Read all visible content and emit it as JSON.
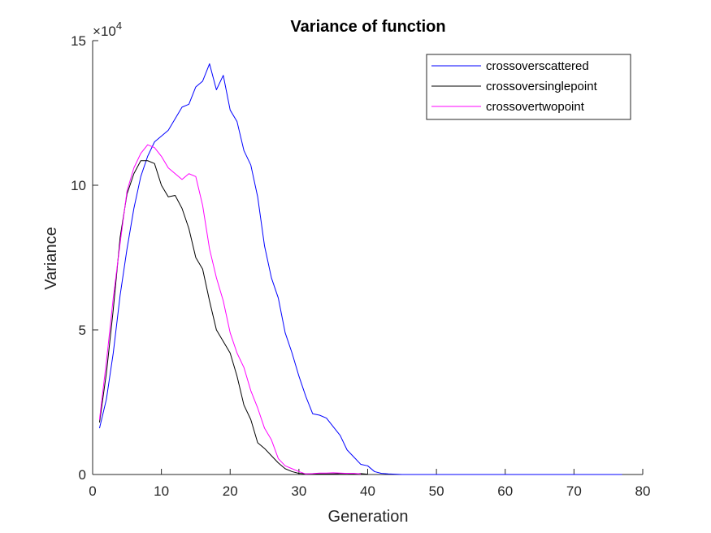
{
  "chart_data": {
    "type": "line",
    "title": "Variance of function",
    "xlabel": "Generation",
    "ylabel": "Variance",
    "xlim": [
      0,
      80
    ],
    "ylim": [
      0,
      15
    ],
    "y_exponent_base": "10",
    "y_exponent_power": "4",
    "xticks": [
      "0",
      "10",
      "20",
      "30",
      "40",
      "50",
      "60",
      "70",
      "80"
    ],
    "yticks": [
      "0",
      "5",
      "10",
      "15"
    ],
    "xtick_values": [
      0,
      10,
      20,
      30,
      40,
      50,
      60,
      70,
      80
    ],
    "ytick_values": [
      0,
      5,
      10,
      15
    ],
    "grid": false,
    "legend_position": "top-right",
    "series": [
      {
        "name": "crossoverscattered",
        "color": "#0000ff",
        "x": [
          1,
          2,
          3,
          4,
          5,
          6,
          7,
          8,
          9,
          10,
          11,
          12,
          13,
          14,
          15,
          16,
          17,
          18,
          19,
          20,
          21,
          22,
          23,
          24,
          25,
          26,
          27,
          28,
          29,
          30,
          31,
          32,
          33,
          34,
          35,
          36,
          37,
          38,
          39,
          40,
          41,
          42,
          43,
          44,
          45,
          50,
          55,
          60,
          65,
          70,
          75,
          77
        ],
        "y": [
          1.6,
          2.6,
          4.2,
          6.2,
          7.8,
          9.2,
          10.3,
          11.0,
          11.5,
          11.7,
          11.9,
          12.3,
          12.7,
          12.8,
          13.4,
          13.6,
          14.2,
          13.3,
          13.8,
          12.6,
          12.2,
          11.2,
          10.7,
          9.6,
          7.9,
          6.8,
          6.1,
          4.9,
          4.2,
          3.4,
          2.7,
          2.1,
          2.05,
          1.95,
          1.65,
          1.35,
          0.85,
          0.6,
          0.35,
          0.3,
          0.1,
          0.04,
          0.02,
          0.01,
          0.0,
          0.0,
          0.0,
          0.0,
          0.0,
          0.0,
          0.0,
          0.0
        ]
      },
      {
        "name": "crossoversinglepoint",
        "color": "#000000",
        "x": [
          1,
          2,
          3,
          4,
          5,
          6,
          7,
          8,
          9,
          10,
          11,
          12,
          13,
          14,
          15,
          16,
          17,
          18,
          19,
          20,
          21,
          22,
          23,
          24,
          25,
          26,
          27,
          28,
          29,
          30,
          31,
          32,
          33,
          34,
          35,
          36,
          37,
          38,
          39,
          40
        ],
        "y": [
          1.8,
          3.5,
          5.7,
          8.2,
          9.7,
          10.4,
          10.85,
          10.85,
          10.75,
          10.0,
          9.6,
          9.65,
          9.2,
          8.5,
          7.5,
          7.1,
          6.0,
          5.0,
          4.6,
          4.2,
          3.4,
          2.4,
          1.9,
          1.1,
          0.9,
          0.65,
          0.4,
          0.2,
          0.1,
          0.04,
          0.02,
          0.02,
          0.02,
          0.02,
          0.02,
          0.03,
          0.03,
          0.02,
          0.03,
          0.01
        ]
      },
      {
        "name": "crossovertwopoint",
        "color": "#ff00ff",
        "x": [
          1,
          2,
          3,
          4,
          5,
          6,
          7,
          8,
          9,
          10,
          11,
          12,
          13,
          14,
          15,
          16,
          17,
          18,
          19,
          20,
          21,
          22,
          23,
          24,
          25,
          26,
          27,
          28,
          29,
          30,
          31,
          32,
          33,
          34,
          35,
          36,
          37,
          38,
          39
        ],
        "y": [
          1.9,
          3.9,
          6.1,
          8.0,
          9.8,
          10.6,
          11.1,
          11.4,
          11.3,
          11.0,
          10.6,
          10.4,
          10.2,
          10.4,
          10.3,
          9.3,
          7.8,
          6.8,
          6.0,
          4.9,
          4.2,
          3.7,
          2.9,
          2.3,
          1.6,
          1.2,
          0.55,
          0.3,
          0.2,
          0.1,
          0.02,
          0.03,
          0.05,
          0.05,
          0.06,
          0.05,
          0.04,
          0.04,
          0.02
        ]
      }
    ]
  }
}
